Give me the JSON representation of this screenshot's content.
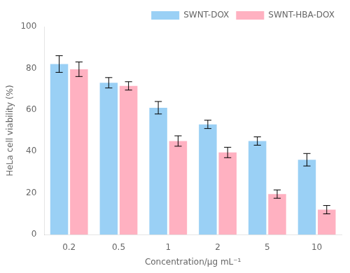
{
  "chart_data": {
    "type": "bar",
    "categories": [
      "0.2",
      "0.5",
      "1",
      "2",
      "5",
      "10"
    ],
    "xlabel": "Concentration/μg mL⁻¹",
    "ylabel": "HeLa cell viability (%)",
    "series": [
      {
        "name": "SWNT-DOX",
        "values": [
          82,
          73,
          61,
          53,
          45,
          36
        ],
        "errors": [
          4,
          2.5,
          3,
          2,
          2,
          3
        ]
      },
      {
        "name": "SWNT-HBA-DOX",
        "values": [
          79.5,
          71.5,
          45,
          39.5,
          19.5,
          12
        ],
        "errors": [
          3.5,
          2,
          2.5,
          2.5,
          2,
          2
        ]
      }
    ],
    "ylim": [
      0,
      100
    ],
    "yticks": [
      0,
      20,
      40,
      60,
      80,
      100
    ],
    "grid": false,
    "legend": "upper right"
  }
}
